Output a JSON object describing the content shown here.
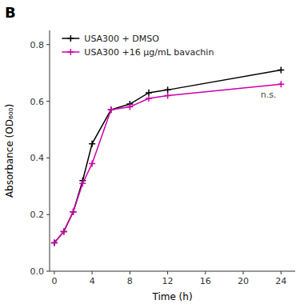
{
  "chart_data": {
    "type": "line",
    "title": "B",
    "x_label": "Time (h)",
    "y_label": "Absorbance (OD₆₀₀)",
    "x": [
      0,
      1,
      2,
      3,
      4,
      6,
      8,
      10,
      12,
      24
    ],
    "series": [
      {
        "name": "USA300 + DMSO",
        "color": "#000000",
        "marker": "plus",
        "values": [
          0.1,
          0.14,
          0.21,
          0.32,
          0.45,
          0.57,
          0.59,
          0.63,
          0.64,
          0.71
        ]
      },
      {
        "name": "USA300 +16 μg/mL bavachin",
        "color": "#cc00aa",
        "marker": "plus",
        "values": [
          0.1,
          0.14,
          0.21,
          0.31,
          0.38,
          0.57,
          0.58,
          0.61,
          0.62,
          0.66
        ]
      }
    ],
    "xlim": [
      -0.5,
      25.5
    ],
    "ylim": [
      0.0,
      0.85
    ],
    "xticks": [
      0,
      4,
      8,
      12,
      16,
      20,
      24
    ],
    "yticks": [
      {
        "value": 0.0,
        "label": "0.0"
      },
      0.2,
      0.4,
      0.6,
      0.8
    ],
    "annotations": [
      {
        "text": "n.s.",
        "x": 23.5,
        "y": 0.625
      }
    ],
    "legend": "upper left",
    "grid": false
  }
}
